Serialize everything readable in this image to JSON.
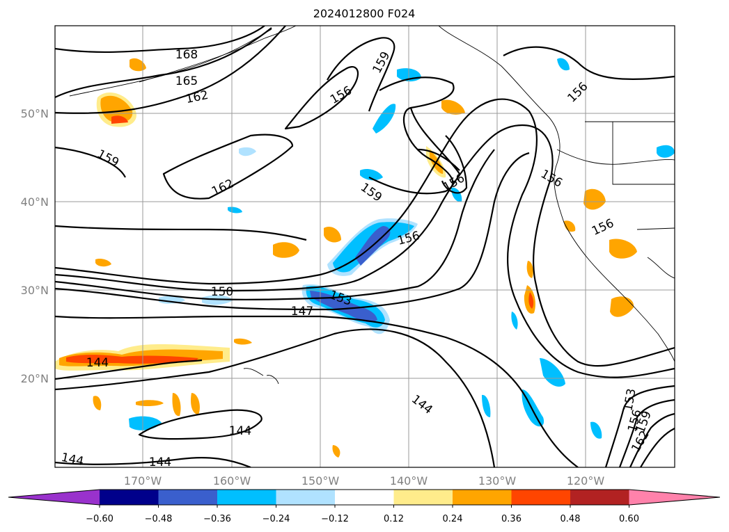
{
  "title": "2024012800 F024",
  "lat_labels": [
    "50°N",
    "40°N",
    "30°N",
    "20°N"
  ],
  "lon_labels": [
    "170°W",
    "160°W",
    "150°W",
    "140°W",
    "130°W",
    "120°W"
  ],
  "contour_labels": [
    "168",
    "165",
    "162",
    "159",
    "156",
    "159",
    "162",
    "156",
    "159",
    "156",
    "156",
    "156",
    "156",
    "150",
    "153",
    "147",
    "144",
    "144",
    "144",
    "144",
    "144",
    "153",
    "156",
    "159",
    "162"
  ],
  "colorbar": {
    "tick_labels": [
      "−0.60",
      "−0.48",
      "−0.36",
      "−0.24",
      "−0.12",
      "0.12",
      "0.24",
      "0.36",
      "0.48",
      "0.60"
    ],
    "colors": [
      "#9932cc",
      "#00008b",
      "#3a5fcd",
      "#00bfff",
      "#b0e2ff",
      "#ffffff",
      "#ffec8b",
      "#ffa500",
      "#ff4500",
      "#b22222",
      "#ff82ab"
    ]
  }
}
